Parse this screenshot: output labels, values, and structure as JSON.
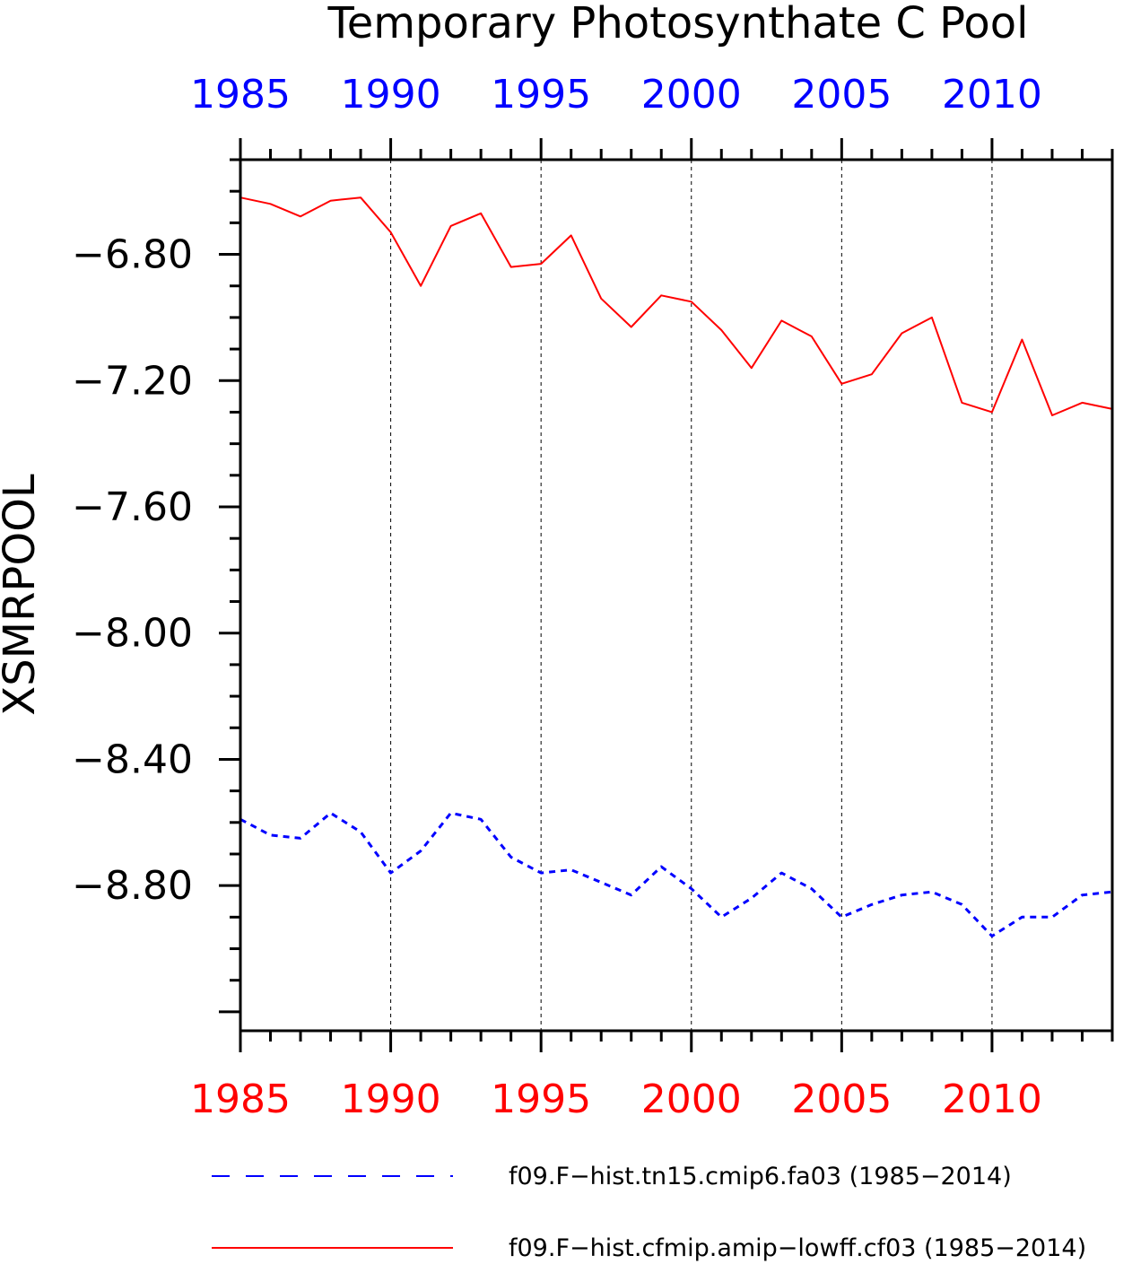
{
  "chart_data": {
    "type": "line",
    "title": "Temporary Photosynthate C Pool",
    "ylabel": "XSMRPOOL",
    "xlabel": "",
    "xlim": [
      1985,
      2014
    ],
    "ylim": [
      -9.26,
      -6.5
    ],
    "x_ticks": [
      1985,
      1990,
      1995,
      2000,
      2005,
      2010
    ],
    "x_tick_labels": [
      "1985",
      "1990",
      "1995",
      "2000",
      "2005",
      "2010"
    ],
    "y_ticks": [
      -6.8,
      -7.2,
      -7.6,
      -8.0,
      -8.4,
      -8.8
    ],
    "y_tick_labels": [
      "−6.80",
      "−7.20",
      "−7.60",
      "−8.00",
      "−8.40",
      "−8.80"
    ],
    "grid": "vertical dashed at major x ticks",
    "legend_placement": "bottom",
    "colors": {
      "top_axis_labels": "#0000ff",
      "bottom_axis_labels": "#ff0000"
    },
    "x": [
      1985,
      1986,
      1987,
      1988,
      1989,
      1990,
      1991,
      1992,
      1993,
      1994,
      1995,
      1996,
      1997,
      1998,
      1999,
      2000,
      2001,
      2002,
      2003,
      2004,
      2005,
      2006,
      2007,
      2008,
      2009,
      2010,
      2011,
      2012,
      2013,
      2014
    ],
    "series": [
      {
        "name": "f09.F−hist.tn15.cmip6.fa03 (1985−2014)",
        "color": "#0000ff",
        "dash": "dashed",
        "values": [
          -8.59,
          -8.64,
          -8.65,
          -8.57,
          -8.63,
          -8.76,
          -8.69,
          -8.57,
          -8.59,
          -8.71,
          -8.76,
          -8.75,
          -8.79,
          -8.83,
          -8.74,
          -8.81,
          -8.9,
          -8.84,
          -8.76,
          -8.81,
          -8.9,
          -8.86,
          -8.83,
          -8.82,
          -8.86,
          -8.96,
          -8.9,
          -8.9,
          -8.83,
          -8.82
        ]
      },
      {
        "name": "f09.F−hist.cfmip.amip−lowff.cf03 (1985−2014)",
        "color": "#ff0000",
        "dash": "solid",
        "values": [
          -6.62,
          -6.64,
          -6.68,
          -6.63,
          -6.62,
          -6.73,
          -6.9,
          -6.71,
          -6.67,
          -6.84,
          -6.83,
          -6.74,
          -6.94,
          -7.03,
          -6.93,
          -6.95,
          -7.04,
          -7.16,
          -7.01,
          -7.06,
          -7.21,
          -7.18,
          -7.05,
          -7.0,
          -7.27,
          -7.3,
          -7.07,
          -7.31,
          -7.27,
          -7.29
        ]
      }
    ]
  }
}
